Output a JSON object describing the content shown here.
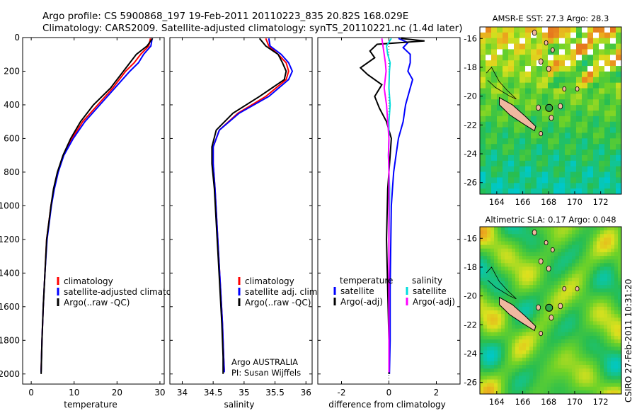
{
  "header": {
    "line1": "Argo profile: CS 5900868_197 19-Feb-2011 20110223_835 20.82S 168.029E",
    "line2": "Climatology: CARS2009. Satellite-adjusted climatology: synTS_20110221.nc (1.4d later)"
  },
  "side_label": "CSIRO 27-Feb-2011 10:31:20",
  "colors": {
    "climatology": "#ff0000",
    "satellite": "#0000ff",
    "argo": "#000000",
    "sal_sat": "#00dddd",
    "sal_argo": "#ff00ff"
  },
  "chart_data": [
    {
      "id": "temperature",
      "type": "line",
      "xlabel": "temperature",
      "xlim": [
        -2,
        31
      ],
      "ylim": [
        0,
        2060
      ],
      "y_reversed": true,
      "xticks": [
        0,
        10,
        20,
        30
      ],
      "yticks": [
        0,
        200,
        400,
        600,
        800,
        1000,
        1200,
        1400,
        1600,
        1800,
        2000
      ],
      "legend": [
        "climatology",
        "satellite-adjusted climatology",
        "Argo(..raw -QC)"
      ],
      "series": [
        {
          "name": "climatology",
          "color": "climatology",
          "x": [
            27.8,
            27.4,
            25.5,
            24,
            22,
            19,
            15.5,
            12,
            9.5,
            7.5,
            6.2,
            5.3,
            4.6,
            4.1,
            3.6,
            3.2,
            2.8,
            2.5,
            2.3
          ],
          "y": [
            5,
            50,
            100,
            150,
            200,
            300,
            400,
            500,
            600,
            700,
            800,
            900,
            1000,
            1100,
            1200,
            1400,
            1600,
            1800,
            1980
          ]
        },
        {
          "name": "satellite",
          "color": "satellite",
          "x": [
            28.2,
            27.9,
            26.2,
            25,
            23,
            19.5,
            16,
            12.5,
            9.8,
            7.6,
            6.3,
            5.4,
            4.7,
            4.2,
            3.7,
            3.2,
            2.8,
            2.5,
            2.3
          ],
          "y": [
            5,
            50,
            100,
            150,
            200,
            300,
            400,
            500,
            600,
            700,
            800,
            900,
            1000,
            1100,
            1200,
            1400,
            1600,
            1800,
            1990
          ]
        },
        {
          "name": "Argo",
          "color": "argo",
          "x": [
            28.3,
            27,
            24.5,
            23,
            21.5,
            18.5,
            14.5,
            11.5,
            9.2,
            7.4,
            6.1,
            5.2,
            4.6,
            4.1,
            3.6,
            3.2,
            2.8,
            2.5,
            2.3
          ],
          "y": [
            5,
            50,
            100,
            150,
            200,
            300,
            400,
            500,
            600,
            700,
            800,
            900,
            1000,
            1100,
            1200,
            1400,
            1600,
            1800,
            2000
          ]
        }
      ]
    },
    {
      "id": "salinity",
      "type": "line",
      "xlabel": "salinity",
      "xlim": [
        33.8,
        36.1
      ],
      "ylim": [
        0,
        2060
      ],
      "y_reversed": true,
      "xticks": [
        34,
        34.5,
        35,
        35.5,
        36
      ],
      "yticks": [
        0,
        200,
        400,
        600,
        800,
        1000,
        1200,
        1400,
        1600,
        1800,
        2000
      ],
      "legend": [
        "climatology",
        "satellite adj. clim.",
        "Argo(..raw -QC)"
      ],
      "annotation": [
        "Argo AUSTRALIA",
        "PI: Susan Wijffels"
      ],
      "series": [
        {
          "name": "climatology",
          "color": "climatology",
          "x": [
            35.35,
            35.4,
            35.55,
            35.68,
            35.72,
            35.68,
            35.35,
            34.9,
            34.6,
            34.5,
            34.5,
            34.53,
            34.56,
            34.59,
            34.62,
            34.65,
            34.67,
            34.68
          ],
          "y": [
            5,
            50,
            100,
            150,
            200,
            250,
            350,
            450,
            550,
            650,
            750,
            900,
            1100,
            1300,
            1500,
            1700,
            1900,
            1980
          ]
        },
        {
          "name": "satellite",
          "color": "satellite",
          "x": [
            35.4,
            35.42,
            35.6,
            35.72,
            35.78,
            35.72,
            35.4,
            34.92,
            34.6,
            34.5,
            34.5,
            34.53,
            34.56,
            34.59,
            34.62,
            34.65,
            34.67,
            34.68
          ],
          "y": [
            5,
            50,
            100,
            150,
            200,
            250,
            350,
            450,
            550,
            650,
            750,
            900,
            1100,
            1300,
            1500,
            1700,
            1900,
            1990
          ]
        },
        {
          "name": "Argo",
          "color": "argo",
          "x": [
            35.25,
            35.35,
            35.55,
            35.62,
            35.68,
            35.65,
            35.25,
            34.82,
            34.55,
            34.48,
            34.48,
            34.52,
            34.55,
            34.58,
            34.61,
            34.64,
            34.66,
            34.66
          ],
          "y": [
            5,
            50,
            100,
            150,
            200,
            250,
            350,
            450,
            550,
            650,
            750,
            900,
            1100,
            1300,
            1500,
            1700,
            1900,
            2000
          ]
        }
      ]
    },
    {
      "id": "difference",
      "type": "line",
      "xlabel": "difference from climatology",
      "xlim": [
        -3,
        3
      ],
      "ylim": [
        0,
        2060
      ],
      "y_reversed": true,
      "xticks": [
        -2,
        0,
        2
      ],
      "yticks": [
        0,
        200,
        400,
        600,
        800,
        1000,
        1200,
        1400,
        1600,
        1800,
        2000
      ],
      "legend_left": {
        "title": "temperature",
        "items": [
          "satellite",
          "Argo(-adj)"
        ]
      },
      "legend_right": {
        "title": "salinity",
        "items": [
          "satellite",
          "Argo(-adj)"
        ]
      },
      "series": [
        {
          "name": "temperature satellite",
          "color": "satellite",
          "x": [
            0.4,
            0.8,
            0.6,
            0.9,
            0.9,
            0.8,
            1,
            0.9,
            0.7,
            0.6,
            0.4,
            0.3,
            0.2,
            0.15,
            0.1,
            0.08,
            0.05,
            0.05,
            0.02
          ],
          "y": [
            5,
            30,
            60,
            100,
            150,
            200,
            250,
            300,
            400,
            500,
            600,
            700,
            800,
            900,
            1000,
            1200,
            1500,
            1800,
            2000
          ]
        },
        {
          "name": "temperature Argo(-adj)",
          "color": "argo",
          "x": [
            0.5,
            1.5,
            -0.5,
            -0.8,
            -0.6,
            -1.2,
            -0.9,
            -0.3,
            -0.6,
            -0.4,
            -0.1,
            0.1,
            0.05,
            0,
            -0.05,
            -0.1,
            -0.05,
            0,
            0
          ],
          "y": [
            5,
            20,
            40,
            80,
            120,
            180,
            220,
            280,
            350,
            420,
            500,
            600,
            700,
            800,
            900,
            1200,
            1500,
            1800,
            2000
          ]
        },
        {
          "name": "salinity satellite",
          "color": "sal_sat",
          "x": [
            0.1,
            -0.1,
            -0.05,
            0.05,
            0.02,
            0,
            0.05,
            0,
            0,
            -0.02,
            0,
            0.03,
            0,
            0,
            0,
            0
          ],
          "y": [
            5,
            50,
            100,
            150,
            200,
            300,
            400,
            500,
            600,
            700,
            800,
            900,
            1200,
            1500,
            1800,
            1980
          ]
        },
        {
          "name": "salinity Argo(-adj)",
          "color": "sal_argo",
          "x": [
            -0.3,
            -0.25,
            -0.2,
            -0.15,
            -0.12,
            -0.2,
            -0.1,
            -0.05,
            0,
            -0.02,
            0,
            0,
            0,
            0,
            0,
            0
          ],
          "y": [
            5,
            50,
            100,
            150,
            200,
            300,
            400,
            500,
            600,
            700,
            800,
            900,
            1200,
            1500,
            1800,
            1990
          ]
        }
      ]
    },
    {
      "id": "sst_map",
      "type": "heatmap",
      "title": "AMSR-E SST: 27.3 Argo: 28.3",
      "xticks": [
        164,
        166,
        168,
        170,
        172
      ],
      "yticks": [
        -16,
        -18,
        -20,
        -22,
        -24,
        -26
      ],
      "xlim": [
        162.7,
        173.6
      ],
      "ylim": [
        -26.8,
        -15.2
      ],
      "float_lon": 168.03,
      "float_lat": -20.82
    },
    {
      "id": "sla_map",
      "type": "heatmap",
      "title": "Altimetric SLA: 0.17 Argo: 0.048",
      "xticks": [
        164,
        166,
        168,
        170,
        172
      ],
      "yticks": [
        -16,
        -18,
        -20,
        -22,
        -24,
        -26
      ],
      "xlim": [
        162.7,
        173.6
      ],
      "ylim": [
        -26.8,
        -15.2
      ],
      "float_lon": 168.03,
      "float_lat": -20.82
    }
  ]
}
